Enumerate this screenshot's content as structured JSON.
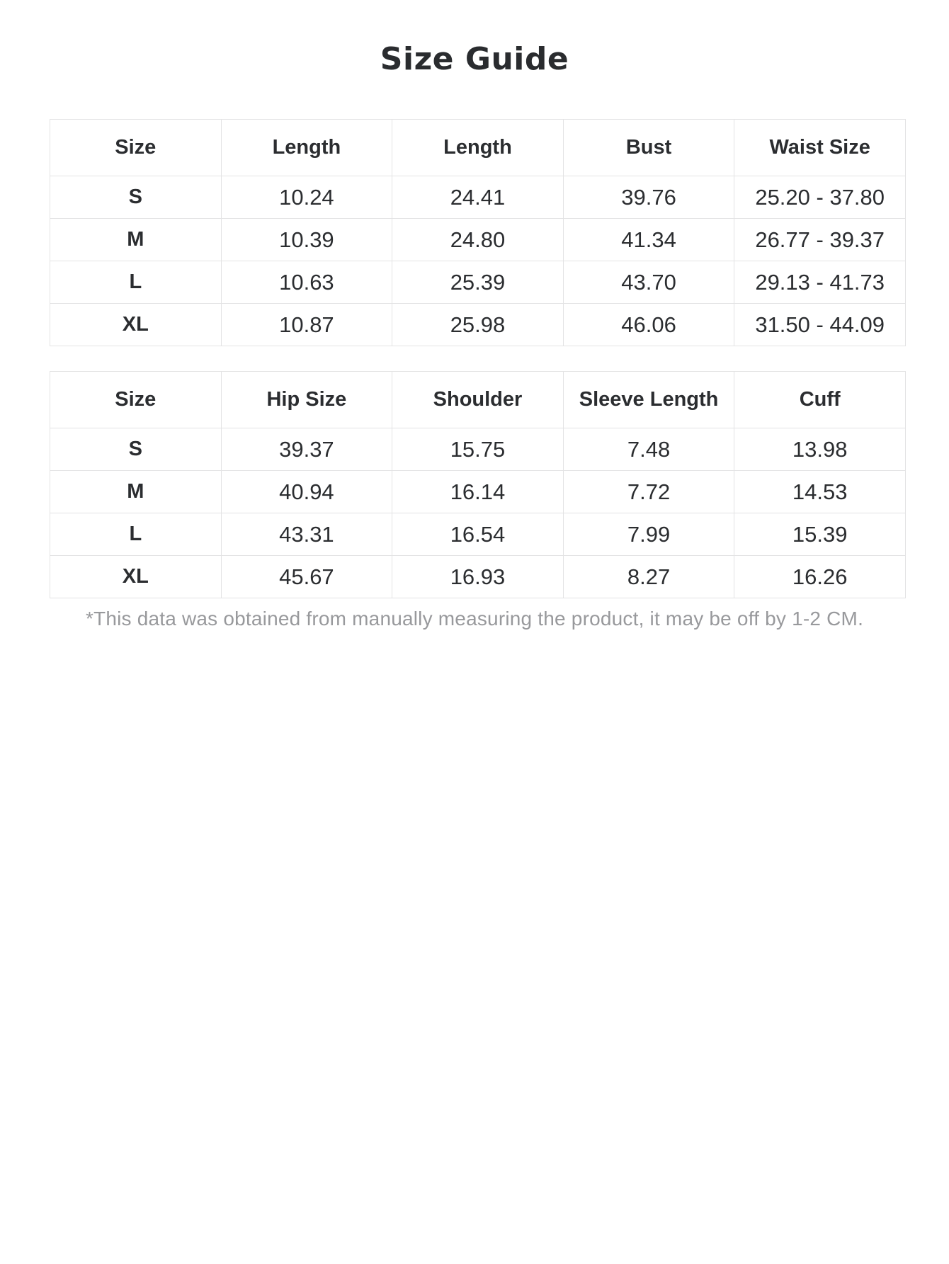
{
  "page": {
    "title": "Size Guide"
  },
  "tables": [
    {
      "name": "size-table-top",
      "headers": [
        "Size",
        "Length",
        "Length",
        "Bust",
        "Waist Size"
      ],
      "rows": [
        [
          "S",
          "10.24",
          "24.41",
          "39.76",
          "25.20 - 37.80"
        ],
        [
          "M",
          "10.39",
          "24.80",
          "41.34",
          "26.77 - 39.37"
        ],
        [
          "L",
          "10.63",
          "25.39",
          "43.70",
          "29.13 - 41.73"
        ],
        [
          "XL",
          "10.87",
          "25.98",
          "46.06",
          "31.50 - 44.09"
        ]
      ]
    },
    {
      "name": "size-table-bottom",
      "headers": [
        "Size",
        "Hip Size",
        "Shoulder",
        "Sleeve Length",
        "Cuff"
      ],
      "rows": [
        [
          "S",
          "39.37",
          "15.75",
          "7.48",
          "13.98"
        ],
        [
          "M",
          "40.94",
          "16.14",
          "7.72",
          "14.53"
        ],
        [
          "L",
          "43.31",
          "16.54",
          "7.99",
          "15.39"
        ],
        [
          "XL",
          "45.67",
          "16.93",
          "8.27",
          "16.26"
        ]
      ]
    }
  ],
  "footnote": {
    "text": "*This data was obtained from manually measuring the product, it may be off by 1-2 CM."
  },
  "colors": {
    "text": "#2b2d30",
    "border": "#e3e3e4",
    "footnote_text": "#98999c",
    "background": "#ffffff"
  }
}
